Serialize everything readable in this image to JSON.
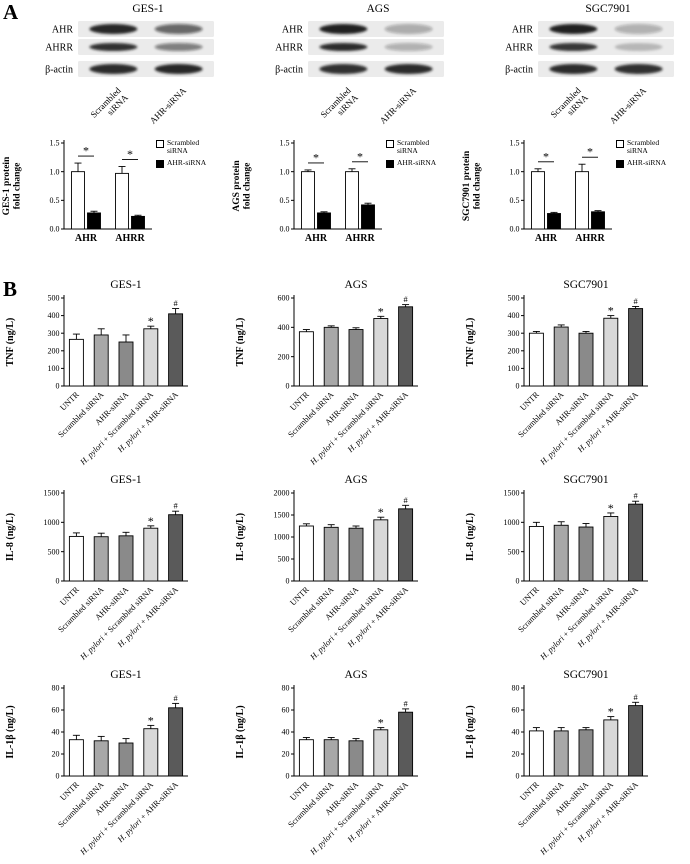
{
  "figure": {
    "panel_a_label": "A",
    "panel_b_label": "B"
  },
  "panel_a": {
    "legend": [
      "Scrambled siRNA",
      "AHR-siRNA"
    ],
    "cells": [
      {
        "title": "GES-1",
        "row_labels": [
          "AHR",
          "AHRR",
          "β-actin"
        ],
        "lane_labels": [
          [
            "Scrambled",
            "siRNA"
          ],
          [
            "AHR-siRNA"
          ]
        ],
        "band_opacity": [
          [
            0.92,
            0.6
          ],
          [
            0.88,
            0.5
          ],
          [
            0.9,
            0.92
          ]
        ]
      },
      {
        "title": "AGS",
        "row_labels": [
          "AHR",
          "AHRR",
          "β-actin"
        ],
        "lane_labels": [
          [
            "Scrambled",
            "siRNA"
          ],
          [
            "AHR-siRNA"
          ]
        ],
        "band_opacity": [
          [
            0.95,
            0.3
          ],
          [
            0.9,
            0.28
          ],
          [
            0.88,
            0.9
          ]
        ]
      },
      {
        "title": "SGC7901",
        "row_labels": [
          "AHR",
          "AHRR",
          "β-actin"
        ],
        "lane_labels": [
          [
            "Scrambled",
            "siRNA"
          ],
          [
            "AHR-siRNA"
          ]
        ],
        "band_opacity": [
          [
            0.95,
            0.28
          ],
          [
            0.85,
            0.22
          ],
          [
            0.9,
            0.88
          ]
        ]
      }
    ]
  },
  "panel_b": {
    "x_labels": [
      "UNTR",
      "Scrambled siRNA",
      "AHR-siRNA",
      "H. pylori + Scrambled siRNA",
      "H. pylori + AHR-siRNA"
    ],
    "bar_fills": [
      "#ffffff",
      "#a8a8a8",
      "#8a8a8a",
      "#d8d8d8",
      "#5a5a5a"
    ]
  },
  "chart_data": [
    {
      "panel": "A",
      "type": "bar",
      "title": "GES-1",
      "ylabel_lines": [
        "GES-1 protein",
        "fold change"
      ],
      "ylim": [
        0,
        1.5
      ],
      "yticks": [
        "0.0",
        "0.5",
        "1.0",
        "1.5"
      ],
      "categories": [
        "AHR",
        "AHRR"
      ],
      "series": [
        {
          "name": "Scrambled siRNA",
          "fill": "#ffffff",
          "values": [
            1.0,
            0.97
          ],
          "errors": [
            0.15,
            0.12
          ]
        },
        {
          "name": "AHR-siRNA",
          "fill": "#000000",
          "values": [
            0.28,
            0.22
          ],
          "errors": [
            0.03,
            0.02
          ]
        }
      ],
      "sig_marks": [
        "*",
        "*"
      ]
    },
    {
      "panel": "A",
      "type": "bar",
      "title": "AGS",
      "ylabel_lines": [
        "AGS protein",
        "fold change"
      ],
      "ylim": [
        0,
        1.5
      ],
      "yticks": [
        "0.0",
        "0.5",
        "1.0",
        "1.5"
      ],
      "categories": [
        "AHR",
        "AHRR"
      ],
      "series": [
        {
          "name": "Scrambled siRNA",
          "fill": "#ffffff",
          "values": [
            1.0,
            1.0
          ],
          "errors": [
            0.03,
            0.05
          ]
        },
        {
          "name": "AHR-siRNA",
          "fill": "#000000",
          "values": [
            0.28,
            0.42
          ],
          "errors": [
            0.02,
            0.03
          ]
        }
      ],
      "sig_marks": [
        "*",
        "*"
      ]
    },
    {
      "panel": "A",
      "type": "bar",
      "title": "SGC7901",
      "ylabel_lines": [
        "SGC7901 protein",
        "fold change"
      ],
      "ylim": [
        0,
        1.5
      ],
      "yticks": [
        "0.0",
        "0.5",
        "1.0",
        "1.5"
      ],
      "categories": [
        "AHR",
        "AHRR"
      ],
      "series": [
        {
          "name": "Scrambled siRNA",
          "fill": "#ffffff",
          "values": [
            1.0,
            1.0
          ],
          "errors": [
            0.05,
            0.13
          ]
        },
        {
          "name": "AHR-siRNA",
          "fill": "#000000",
          "values": [
            0.27,
            0.3
          ],
          "errors": [
            0.02,
            0.02
          ]
        }
      ],
      "sig_marks": [
        "*",
        "*"
      ]
    },
    {
      "panel": "B",
      "type": "bar",
      "title": "GES-1",
      "ylabel": "TNF (ng/L)",
      "ylim": [
        0,
        500
      ],
      "yticks": [
        "0",
        "100",
        "200",
        "300",
        "400",
        "500"
      ],
      "values": [
        265,
        290,
        250,
        325,
        410
      ],
      "errors": [
        30,
        35,
        40,
        15,
        30
      ],
      "marks": [
        "",
        "",
        "",
        "*",
        "#"
      ]
    },
    {
      "panel": "B",
      "type": "bar",
      "title": "AGS",
      "ylabel": "TNF (ng/L)",
      "ylim": [
        0,
        600
      ],
      "yticks": [
        "0",
        "200",
        "400",
        "600"
      ],
      "values": [
        370,
        400,
        385,
        460,
        540
      ],
      "errors": [
        15,
        10,
        12,
        15,
        15
      ],
      "marks": [
        "",
        "",
        "",
        "*",
        "#"
      ]
    },
    {
      "panel": "B",
      "type": "bar",
      "title": "SGC7901",
      "ylabel": "TNF (ng/L)",
      "ylim": [
        0,
        500
      ],
      "yticks": [
        "0",
        "100",
        "200",
        "300",
        "400",
        "500"
      ],
      "values": [
        300,
        335,
        300,
        385,
        440
      ],
      "errors": [
        10,
        12,
        10,
        15,
        12
      ],
      "marks": [
        "",
        "",
        "",
        "*",
        "#"
      ]
    },
    {
      "panel": "B",
      "type": "bar",
      "title": "GES-1",
      "ylabel": "IL-8 (ng/L)",
      "ylim": [
        0,
        1500
      ],
      "yticks": [
        "0",
        "500",
        "1000",
        "1500"
      ],
      "values": [
        760,
        755,
        770,
        900,
        1130
      ],
      "errors": [
        60,
        60,
        60,
        40,
        60
      ],
      "marks": [
        "",
        "",
        "",
        "*",
        "#"
      ]
    },
    {
      "panel": "B",
      "type": "bar",
      "title": "AGS",
      "ylabel": "IL-8 (ng/L)",
      "ylim": [
        0,
        2000
      ],
      "yticks": [
        "0",
        "500",
        "1000",
        "1500",
        "2000"
      ],
      "values": [
        1250,
        1220,
        1200,
        1390,
        1640
      ],
      "errors": [
        50,
        60,
        50,
        60,
        80
      ],
      "marks": [
        "",
        "",
        "",
        "*",
        "#"
      ]
    },
    {
      "panel": "B",
      "type": "bar",
      "title": "SGC7901",
      "ylabel": "IL-8 (ng/L)",
      "ylim": [
        0,
        1500
      ],
      "yticks": [
        "0",
        "500",
        "1000",
        "1500"
      ],
      "values": [
        930,
        950,
        920,
        1100,
        1310
      ],
      "errors": [
        70,
        60,
        60,
        60,
        50
      ],
      "marks": [
        "",
        "",
        "",
        "*",
        "#"
      ]
    },
    {
      "panel": "B",
      "type": "bar",
      "title": "GES-1",
      "ylabel": "IL-1β (ng/L)",
      "ylim": [
        0,
        80
      ],
      "yticks": [
        "0",
        "20",
        "40",
        "60",
        "80"
      ],
      "values": [
        33,
        32,
        30,
        43,
        62
      ],
      "errors": [
        4,
        4,
        4,
        3,
        4
      ],
      "marks": [
        "",
        "",
        "",
        "*",
        "#"
      ]
    },
    {
      "panel": "B",
      "type": "bar",
      "title": "AGS",
      "ylabel": "IL-1β (ng/L)",
      "ylim": [
        0,
        80
      ],
      "yticks": [
        "0",
        "20",
        "40",
        "60",
        "80"
      ],
      "values": [
        33,
        33,
        32,
        42,
        58
      ],
      "errors": [
        2,
        2,
        2,
        2,
        3
      ],
      "marks": [
        "",
        "",
        "",
        "*",
        "#"
      ]
    },
    {
      "panel": "B",
      "type": "bar",
      "title": "SGC7901",
      "ylabel": "IL-1β (ng/L)",
      "ylim": [
        0,
        80
      ],
      "yticks": [
        "0",
        "20",
        "40",
        "60",
        "80"
      ],
      "values": [
        41,
        41,
        42,
        51,
        64
      ],
      "errors": [
        3,
        3,
        2,
        3,
        3
      ],
      "marks": [
        "",
        "",
        "",
        "*",
        "#"
      ]
    }
  ]
}
